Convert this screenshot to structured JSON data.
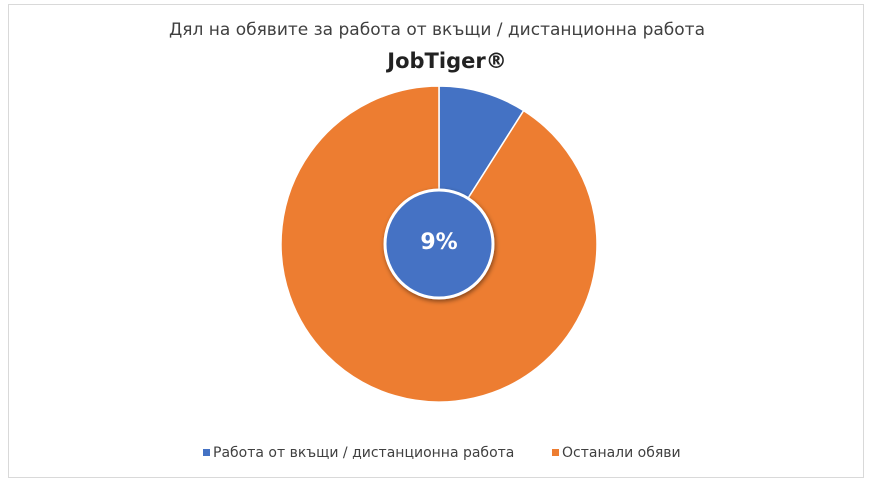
{
  "chart_data": {
    "type": "pie",
    "title": "Дял на обявите за работа от вкъщи / дистанционна работа",
    "subtitle": "JobTiger®",
    "categories": [
      "Работа от вкъщи / дистанционна работа",
      "Останали обяви"
    ],
    "values": [
      9,
      91
    ],
    "value_labels": [
      "9%",
      null
    ],
    "colors": [
      "#4472c4",
      "#ed7d31"
    ],
    "legend": "bottom"
  }
}
